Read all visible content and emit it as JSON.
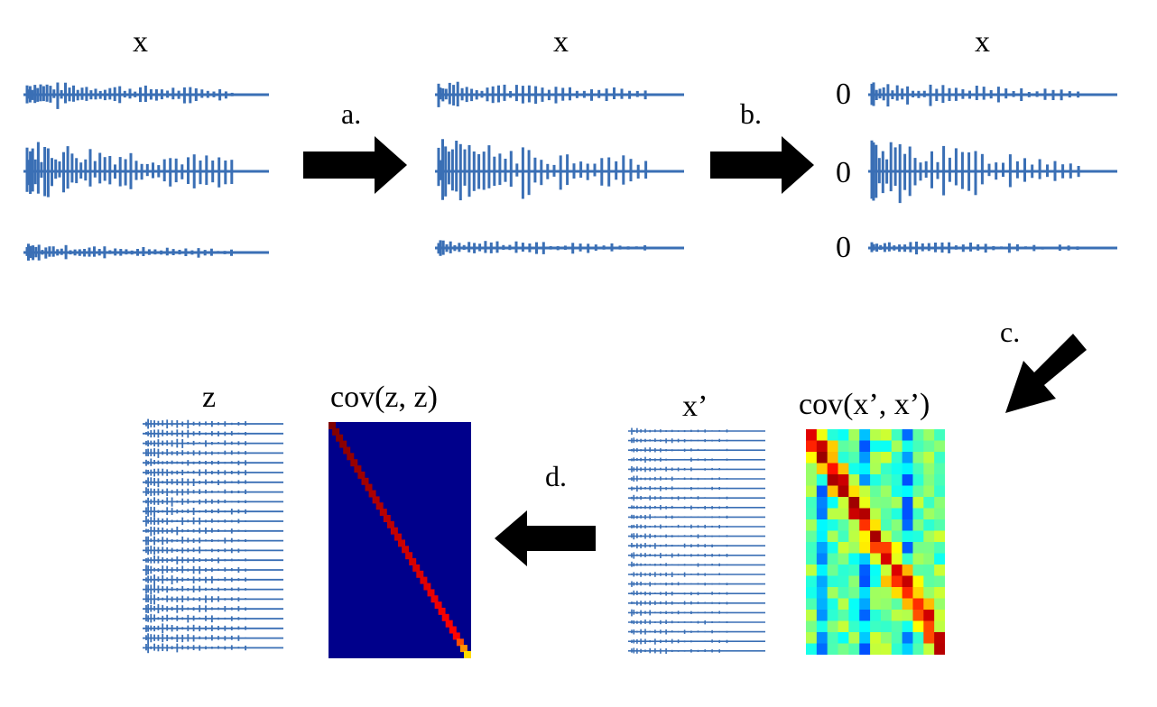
{
  "colors": {
    "signal": "#3a6fb5",
    "arrow": "#000000",
    "text": "#000000",
    "zcov_bg": "#00008b"
  },
  "panels": {
    "raw": {
      "title": "x"
    },
    "centered": {
      "title": "x"
    },
    "zero_mean": {
      "title": "x",
      "zero_labels": [
        "0",
        "0",
        "0"
      ]
    },
    "sphered_input": {
      "title": "x’"
    },
    "cov_x": {
      "title": "cov(x’, x’)"
    },
    "cov_z": {
      "title": "cov(z, z)"
    },
    "whitened": {
      "title": "z"
    }
  },
  "steps": {
    "a": "a.",
    "b": "b.",
    "c": "c.",
    "d": "d."
  },
  "icons": {
    "arrow_a": "arrow-right-icon",
    "arrow_b": "arrow-right-icon",
    "arrow_c": "arrow-down-left-icon",
    "arrow_d": "arrow-left-icon"
  }
}
